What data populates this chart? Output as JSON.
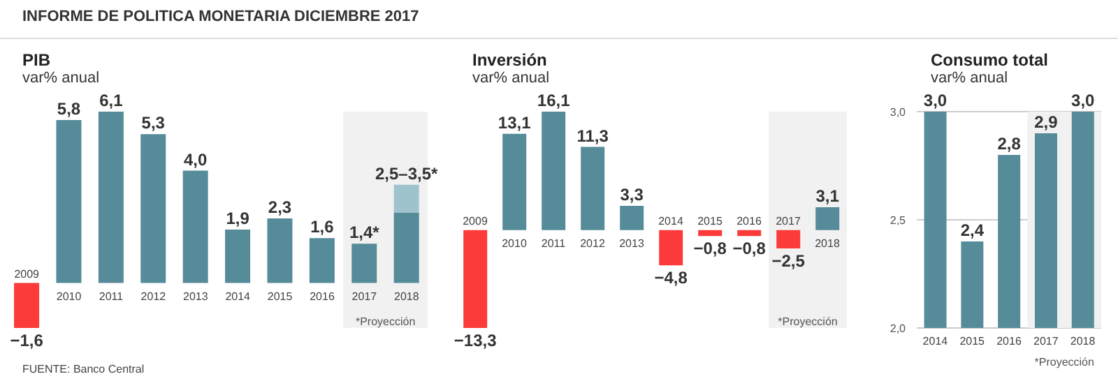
{
  "chart_data": [
    {
      "type": "bar",
      "title": "PIB",
      "subtitle": "var% anual",
      "categories": [
        "2009",
        "2010",
        "2011",
        "2012",
        "2013",
        "2014",
        "2015",
        "2016",
        "2017",
        "2018"
      ],
      "stacked": true,
      "tick_labels": "x",
      "series": [
        {
          "color": "#568b99",
          "colors": [
            "#fd3a3a",
            "#568b99",
            "#568b99",
            "#568b99",
            "#568b99",
            "#568b99",
            "#568b99",
            "#568b99",
            "#568b99",
            "#568b99"
          ],
          "values": [
            -1.6,
            5.8,
            6.1,
            5.3,
            4.0,
            1.9,
            2.3,
            1.6,
            1.4,
            2.5
          ],
          "value_labels": [
            "−1,6",
            "5,8",
            "6,1",
            "5,3",
            "4,0",
            "1,9",
            "2,3",
            "1,6",
            "1,4*",
            null
          ]
        },
        {
          "color": "#9fc3cd",
          "values": [
            null,
            null,
            null,
            null,
            null,
            null,
            null,
            null,
            null,
            1.0
          ],
          "value_labels": [
            null,
            null,
            null,
            null,
            null,
            null,
            null,
            null,
            null,
            "2,5–3,5*"
          ]
        }
      ],
      "bands": [
        {
          "axis": "x",
          "from": "2017",
          "to": "2018",
          "label": "*Proyección",
          "color": "#f1f1f1"
        }
      ],
      "annotations": [
        "INFORME DE POLITICA MONETARIA DICIEMBRE 2017",
        "FUENTE: Banco Central"
      ]
    },
    {
      "type": "bar",
      "title": "Inversión",
      "subtitle": "var% anual",
      "categories": [
        "2009",
        "2010",
        "2011",
        "2012",
        "2013",
        "2014",
        "2015",
        "2016",
        "2017",
        "2018"
      ],
      "tick_labels": "x",
      "series": [
        {
          "color": "#568b99",
          "colors": [
            "#fd3a3a",
            "#568b99",
            "#568b99",
            "#568b99",
            "#568b99",
            "#fd3a3a",
            "#fd3a3a",
            "#fd3a3a",
            "#fd3a3a",
            "#568b99"
          ],
          "values": [
            -13.3,
            13.1,
            16.1,
            11.3,
            3.3,
            -4.8,
            -0.8,
            -0.8,
            -2.5,
            3.1
          ],
          "value_labels": [
            "−13,3",
            "13,1",
            "16,1",
            "11,3",
            "3,3",
            "−4,8",
            "−0,8",
            "−0,8",
            "−2,5",
            "3,1"
          ]
        }
      ],
      "bands": [
        {
          "axis": "x",
          "from": "2017",
          "to": "2018",
          "label": "*Proyección",
          "color": "#f1f1f1"
        }
      ]
    },
    {
      "type": "bar",
      "title": "Consumo total",
      "subtitle": "var% anual",
      "categories": [
        "2014",
        "2015",
        "2016",
        "2017",
        "2018"
      ],
      "ylim": [
        2.0,
        3.0
      ],
      "yticks": [
        {
          "value": 2.0,
          "label": "2,0"
        },
        {
          "value": 2.5,
          "label": "2,5"
        },
        {
          "value": 3.0,
          "label": "3,0"
        }
      ],
      "grid": "y",
      "series": [
        {
          "color": "#568b99",
          "values": [
            3.0,
            2.4,
            2.8,
            2.9,
            3.0
          ],
          "value_labels": [
            "3,0",
            "2,4",
            "2,8",
            "2,9",
            "3,0"
          ]
        }
      ],
      "bands": [
        {
          "axis": "x",
          "from": "2017",
          "to": "2018",
          "label": "*Proyección",
          "color": "#f1f1f1"
        }
      ]
    }
  ]
}
